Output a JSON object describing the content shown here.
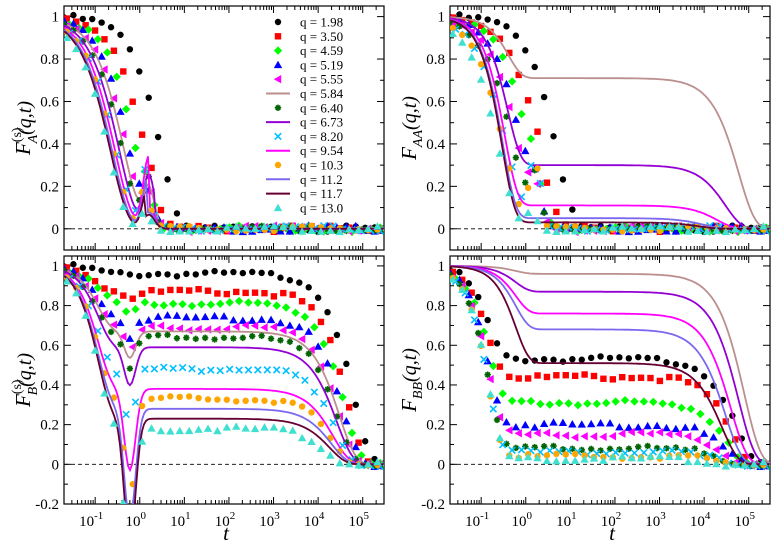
{
  "chart_data": [
    {
      "type": "scatter",
      "panel": "top-left",
      "ylabel": "F_A^(s)(q,t)",
      "ylabel_parts": {
        "main": "F",
        "sub": "A",
        "sup": "(s)",
        "args": "(q,t)"
      },
      "xlabel": "",
      "xscale": "log",
      "xlim": [
        0.02,
        300000
      ],
      "ylim": [
        -0.1,
        1.05
      ],
      "yticks": [
        0,
        0.2,
        0.4,
        0.6,
        0.8,
        1
      ],
      "ytick_labels": [
        "0",
        "0.2",
        "0.4",
        "0.6",
        "0.8",
        "1"
      ],
      "xtick_labels": [],
      "reference_line": 0,
      "legend": {
        "placement": "top-right"
      }
    },
    {
      "type": "scatter",
      "panel": "top-right",
      "ylabel": "F_AA(q,t)",
      "ylabel_parts": {
        "main": "F",
        "sub": "AA",
        "sup": "",
        "args": "(q,t)"
      },
      "xlabel": "",
      "xscale": "log",
      "xlim": [
        0.02,
        300000
      ],
      "ylim": [
        -0.1,
        1.05
      ],
      "yticks": [
        0,
        0.2,
        0.4,
        0.6,
        0.8,
        1
      ],
      "ytick_labels": [
        "0",
        "0.2",
        "0.4",
        "0.6",
        "0.8",
        "1"
      ],
      "xtick_labels": [],
      "reference_line": 0
    },
    {
      "type": "scatter",
      "panel": "bottom-left",
      "ylabel": "F_B^(s)(q,t)",
      "ylabel_parts": {
        "main": "F",
        "sub": "B",
        "sup": "(s)",
        "args": "(q,t)"
      },
      "xlabel": "t",
      "xscale": "log",
      "xlim": [
        0.02,
        300000
      ],
      "ylim": [
        -0.2,
        1.05
      ],
      "yticks": [
        -0.2,
        0,
        0.2,
        0.4,
        0.6,
        0.8,
        1
      ],
      "ytick_labels": [
        "-0.2",
        "0",
        "0.2",
        "0.4",
        "0.6",
        "0.8",
        "1"
      ],
      "xticks": [
        0.1,
        1,
        10,
        100,
        1000,
        10000,
        100000
      ],
      "xtick_labels": [
        "10^-1",
        "10^0",
        "10^1",
        "10^2",
        "10^3",
        "10^4",
        "10^5"
      ],
      "reference_line": 0
    },
    {
      "type": "scatter",
      "panel": "bottom-right",
      "ylabel": "F_BB(q,t)",
      "ylabel_parts": {
        "main": "F",
        "sub": "BB",
        "sup": "",
        "args": "(q,t)"
      },
      "xlabel": "t",
      "xscale": "log",
      "xlim": [
        0.02,
        300000
      ],
      "ylim": [
        -0.2,
        1.05
      ],
      "yticks": [
        -0.2,
        0,
        0.2,
        0.4,
        0.6,
        0.8,
        1
      ],
      "ytick_labels": [
        "-0.2",
        "0",
        "0.2",
        "0.4",
        "0.6",
        "0.8",
        "1"
      ],
      "xticks": [
        0.1,
        1,
        10,
        100,
        1000,
        10000,
        100000
      ],
      "xtick_labels": [
        "10^-1",
        "10^0",
        "10^1",
        "10^2",
        "10^3",
        "10^4",
        "10^5"
      ],
      "reference_line": 0
    }
  ],
  "series": [
    {
      "label": "q = 1.98",
      "q": 1.98,
      "marker": "circle",
      "color": "#000000",
      "A": {
        "tau": 3.0,
        "beta": 1.0,
        "plateau": 0.0
      },
      "AA": {
        "tau": 5.0,
        "beta": 1.0,
        "plateau": 0.0
      },
      "B": {
        "plateau": 0.96,
        "tau": 60000
      },
      "BB": {
        "plateau": 0.53,
        "tau": 50000
      }
    },
    {
      "label": "q = 3.50",
      "q": 3.5,
      "marker": "square",
      "color": "#ff0000",
      "A": {
        "tau": 1.3,
        "plateau": 0.0
      },
      "AA": {
        "tau": 2.0,
        "plateau": 0.0
      },
      "B": {
        "plateau": 0.87,
        "tau": 45000
      },
      "BB": {
        "plateau": 0.44,
        "tau": 40000
      }
    },
    {
      "label": "q = 4.59",
      "q": 4.59,
      "marker": "diamond",
      "color": "#00ff00",
      "A": {
        "tau": 0.8,
        "plateau": 0.0
      },
      "AA": {
        "tau": 1.2,
        "plateau": 0.0
      },
      "B": {
        "plateau": 0.81,
        "tau": 40000
      },
      "BB": {
        "plateau": 0.31,
        "tau": 35000
      }
    },
    {
      "label": "q = 5.19",
      "q": 5.19,
      "marker": "triangle-up",
      "color": "#0000ff",
      "A": {
        "tau": 0.6,
        "plateau": 0.0
      },
      "AA": {
        "tau": 0.9,
        "plateau": 0.0
      },
      "B": {
        "plateau": 0.74,
        "tau": 35000
      },
      "BB": {
        "plateau": 0.2,
        "tau": 30000
      }
    },
    {
      "label": "q = 5.55",
      "q": 5.55,
      "marker": "triangle-left",
      "color": "#ff00ff",
      "A": {
        "tau": 0.5,
        "plateau": 0.0
      },
      "AA": {
        "tau": 0.7,
        "plateau": 0.0
      },
      "B": {
        "plateau": 0.69,
        "tau": 30000
      },
      "BB": {
        "plateau": 0.15,
        "tau": 28000
      }
    },
    {
      "label": "q = 5.84",
      "q": 5.84,
      "marker": "line",
      "color": "#bc8f8f",
      "A": {
        "tau": 0.45,
        "plateau": 0.0
      },
      "AA": {
        "plateau": 0.71,
        "tau": 60000
      },
      "B": {
        "plateau": 0.67,
        "tau": 30000
      },
      "BB": {
        "plateau": 0.96,
        "tau": 80000
      }
    },
    {
      "label": "q = 6.40",
      "q": 6.4,
      "marker": "star",
      "color": "#006400",
      "A": {
        "tau": 0.4,
        "plateau": 0.0
      },
      "AA": {
        "tau": 0.55,
        "plateau": 0.0
      },
      "B": {
        "plateau": 0.64,
        "tau": 28000
      },
      "BB": {
        "plateau": 0.08,
        "tau": 25000
      }
    },
    {
      "label": "q = 6.73",
      "q": 6.73,
      "marker": "line",
      "color": "#9400d3",
      "A": {
        "tau": 0.35,
        "plateau": 0.0
      },
      "AA": {
        "plateau": 0.3,
        "tau": 30000
      },
      "B": {
        "plateau": 0.59,
        "tau": 26000
      },
      "BB": {
        "plateau": 0.87,
        "tau": 60000
      }
    },
    {
      "label": "q = 8.20",
      "q": 8.2,
      "marker": "x",
      "color": "#00bfff",
      "A": {
        "tau": 0.3,
        "plateau": 0.0
      },
      "AA": {
        "tau": 0.4,
        "plateau": 0.0
      },
      "B": {
        "plateau": 0.48,
        "tau": 24000
      },
      "BB": {
        "plateau": 0.06,
        "tau": 20000
      }
    },
    {
      "label": "q = 9.54",
      "q": 9.54,
      "marker": "line",
      "color": "#ff00ff",
      "A": {
        "tau": 0.28,
        "plateau": 0.0
      },
      "AA": {
        "plateau": 0.11,
        "tau": 20000
      },
      "B": {
        "plateau": 0.38,
        "tau": 22000
      },
      "BB": {
        "plateau": 0.76,
        "tau": 40000
      }
    },
    {
      "label": "q = 10.3",
      "q": 10.3,
      "marker": "circle",
      "color": "#ffa500",
      "A": {
        "tau": 0.26,
        "plateau": 0.0
      },
      "AA": {
        "tau": 0.35,
        "plateau": 0.0
      },
      "B": {
        "plateau": 0.33,
        "tau": 20000
      },
      "BB": {
        "plateau": 0.04,
        "tau": 20000
      }
    },
    {
      "label": "q = 11.2",
      "q": 11.2,
      "marker": "line",
      "color": "#7b68ee",
      "A": {
        "tau": 0.24,
        "plateau": 0.0
      },
      "AA": {
        "plateau": 0.05,
        "tau": 10000
      },
      "B": {
        "plateau": 0.28,
        "tau": 20000
      },
      "BB": {
        "plateau": 0.68,
        "tau": 30000
      }
    },
    {
      "label": "q = 11.7",
      "q": 11.7,
      "marker": "line",
      "color": "#660033",
      "A": {
        "tau": 0.22,
        "plateau": 0.0
      },
      "AA": {
        "plateau": 0.03,
        "tau": 8000
      },
      "B": {
        "plateau": 0.23,
        "tau": 18000
      },
      "BB": {
        "plateau": 0.51,
        "tau": 25000
      }
    },
    {
      "label": "q = 13.0",
      "q": 13.0,
      "marker": "triangle-up",
      "color": "#40e0d0",
      "A": {
        "tau": 0.2,
        "plateau": 0.0
      },
      "AA": {
        "tau": 0.25,
        "plateau": 0.0
      },
      "B": {
        "plateau": 0.18,
        "tau": 16000
      },
      "BB": {
        "plateau": 0.03,
        "tau": 18000
      }
    }
  ]
}
